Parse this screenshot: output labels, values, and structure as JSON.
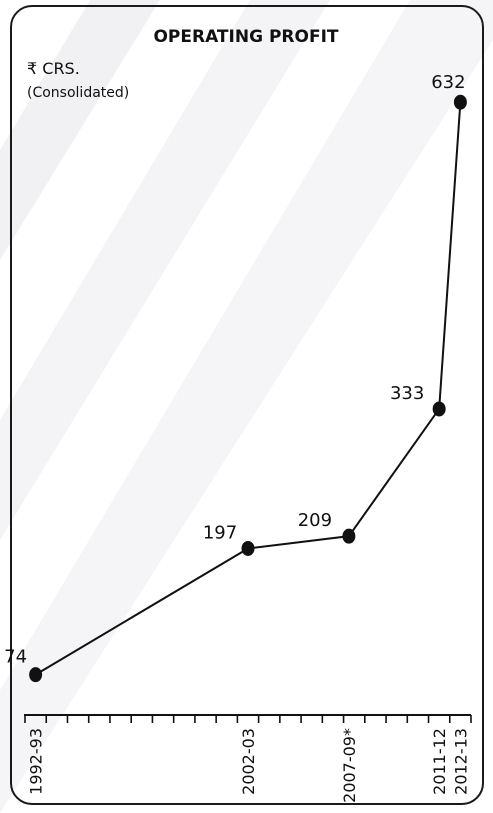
{
  "chart_data": {
    "type": "line",
    "title": "OPERATING PROFIT",
    "unit_label": "₹ CRS.",
    "subtitle": "(Consolidated)",
    "categories": [
      "1992-93",
      "2002-03",
      "2007-09*",
      "2011-12",
      "2012-13"
    ],
    "values": [
      74,
      197,
      209,
      333,
      632
    ],
    "data_labels": [
      "74",
      "197",
      "209",
      "333",
      "632"
    ],
    "x_positions": [
      1992.5,
      2002.5,
      2007.25,
      2011.5,
      2012.5
    ],
    "xlim": [
      1992,
      2013
    ],
    "ylim": [
      60,
      640
    ],
    "grid": false,
    "legend": "none",
    "colors": {
      "line": "#111111",
      "marker": "#111111",
      "background": "#ffffff",
      "stripes": "#f1f1f4"
    }
  }
}
